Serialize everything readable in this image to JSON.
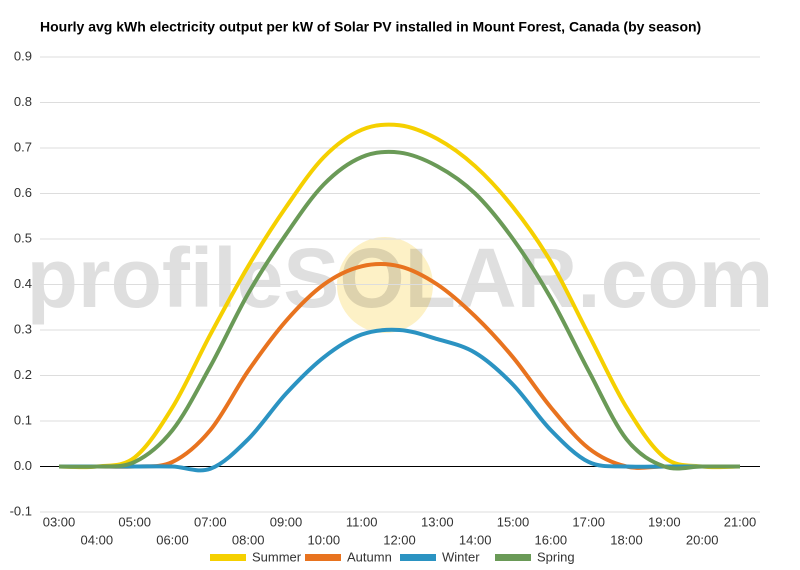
{
  "chart_data": {
    "type": "line",
    "title": "Hourly avg kWh electricity output per kW of Solar PV installed in Mount Forest, Canada (by season)",
    "watermark": "profileSOLAR.com",
    "categories": [
      "03:00",
      "04:00",
      "05:00",
      "06:00",
      "07:00",
      "08:00",
      "09:00",
      "10:00",
      "11:00",
      "12:00",
      "13:00",
      "14:00",
      "15:00",
      "16:00",
      "17:00",
      "18:00",
      "19:00",
      "20:00",
      "21:00"
    ],
    "series": [
      {
        "name": "Summer",
        "color": "#f5d000",
        "values": [
          0,
          0,
          0.02,
          0.13,
          0.29,
          0.44,
          0.57,
          0.68,
          0.74,
          0.75,
          0.72,
          0.66,
          0.57,
          0.45,
          0.29,
          0.13,
          0.02,
          0,
          0
        ]
      },
      {
        "name": "Autumn",
        "color": "#e8731f",
        "values": [
          0,
          0,
          0,
          0.01,
          0.08,
          0.21,
          0.32,
          0.4,
          0.44,
          0.44,
          0.4,
          0.33,
          0.24,
          0.13,
          0.04,
          0,
          0,
          0,
          0
        ]
      },
      {
        "name": "Winter",
        "color": "#2b93c2",
        "values": [
          0,
          0,
          0,
          0,
          -0.005,
          0.06,
          0.16,
          0.24,
          0.29,
          0.3,
          0.28,
          0.25,
          0.18,
          0.08,
          0.01,
          0,
          0,
          0,
          0
        ]
      },
      {
        "name": "Spring",
        "color": "#6a9a57",
        "values": [
          0,
          0,
          0.01,
          0.08,
          0.22,
          0.38,
          0.51,
          0.62,
          0.68,
          0.69,
          0.66,
          0.6,
          0.5,
          0.37,
          0.21,
          0.06,
          0,
          0,
          0
        ]
      }
    ],
    "ylim": [
      -0.1,
      0.9
    ],
    "yticks": [
      -0.1,
      {
        "value": 0,
        "label": "0.0"
      },
      0.1,
      0.2,
      0.3,
      0.4,
      0.5,
      0.6,
      0.7,
      0.8,
      0.9
    ],
    "grid": true,
    "legend": "bottom"
  }
}
